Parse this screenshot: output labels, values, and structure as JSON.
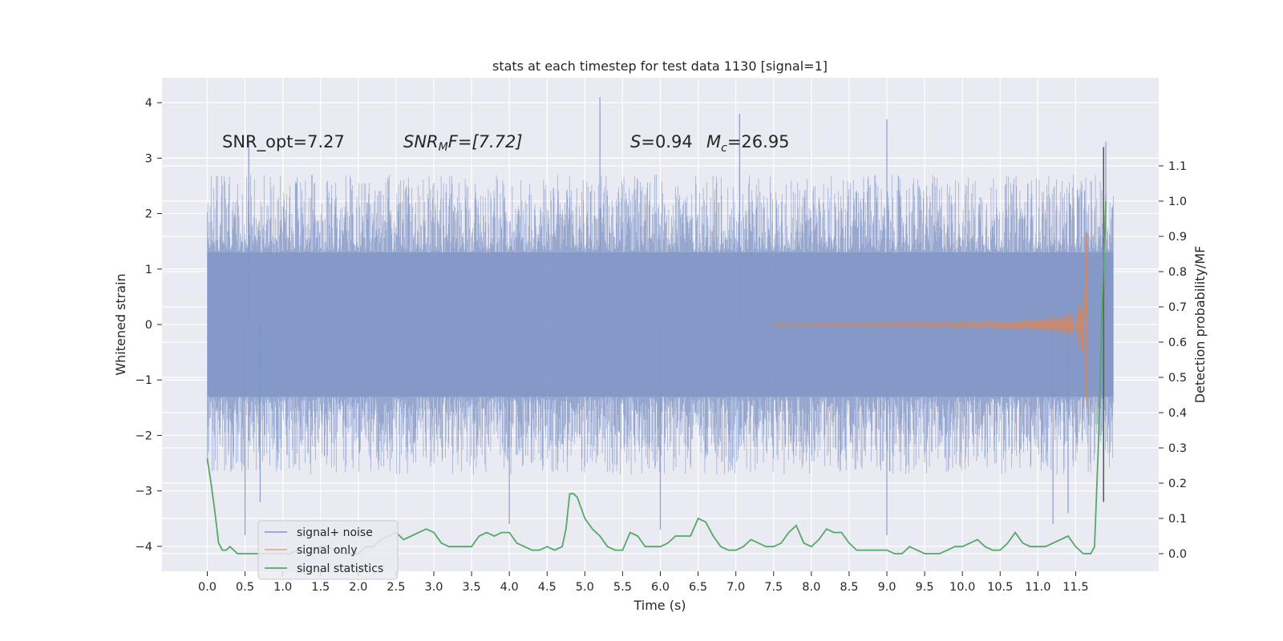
{
  "chart_data": {
    "type": "line",
    "title": "stats at each timestep for test data 1130 [signal=1]",
    "xlabel": "Time (s)",
    "ylabel_left": "Whitened strain",
    "ylabel_right": "Detection probability/MF",
    "xlim": [
      -0.6,
      12.6
    ],
    "ylim_left": [
      -4.45,
      4.45
    ],
    "ylim_right": [
      -0.05,
      1.35
    ],
    "x_ticks": [
      "0.0",
      "0.5",
      "1.0",
      "1.5",
      "2.0",
      "2.5",
      "3.0",
      "3.5",
      "4.0",
      "4.5",
      "5.0",
      "5.5",
      "6.0",
      "6.5",
      "7.0",
      "7.5",
      "8.0",
      "8.5",
      "9.0",
      "9.5",
      "10.0",
      "10.5",
      "11.0",
      "11.5"
    ],
    "y_ticks_left": [
      "4",
      "3",
      "2",
      "1",
      "0",
      "−1",
      "−2",
      "−3",
      "−4"
    ],
    "y_ticks_right": [
      "1.1",
      "1.0",
      "0.9",
      "0.8",
      "0.7",
      "0.6",
      "0.5",
      "0.4",
      "0.3",
      "0.2",
      "0.1",
      "0.0"
    ],
    "grid": true,
    "legend_position": "lower-left",
    "annotations": {
      "snr_opt": "SNR_opt=7.27",
      "snr_mf_main": "SNR",
      "snr_mf_sub": "M",
      "snr_mf_rest": "F=[7.72]",
      "s_var": "S",
      "s_rest": "=0.94",
      "mc_var": "M",
      "mc_sub": "c",
      "mc_rest": "=26.95"
    },
    "noise_envelope": {
      "x_range": [
        0.0,
        12.0
      ],
      "dense_band": [
        -1.3,
        1.3
      ],
      "typical_peaks": [
        -2.0,
        2.0
      ],
      "outlier_peaks": [
        {
          "x": 5.2,
          "y": 4.1
        },
        {
          "x": 0.55,
          "y": 3.3
        },
        {
          "x": 7.05,
          "y": 3.8
        },
        {
          "x": 9.0,
          "y": 3.7
        },
        {
          "x": 11.9,
          "y": 3.3
        },
        {
          "x": 0.5,
          "y": -3.8
        },
        {
          "x": 9.0,
          "y": -3.8
        },
        {
          "x": 6.0,
          "y": -3.7
        },
        {
          "x": 4.0,
          "y": -3.6
        },
        {
          "x": 11.2,
          "y": -3.6
        },
        {
          "x": 0.7,
          "y": -3.2
        },
        {
          "x": 11.4,
          "y": -3.4
        }
      ]
    },
    "signal_only": {
      "chirp_start": 7.5,
      "merger_time": 11.65,
      "final_positive_peak": 1.65,
      "final_negative_peak": -1.5
    },
    "series": [
      {
        "name": "signal statistics",
        "axis": "right",
        "x": [
          0.0,
          0.05,
          0.1,
          0.15,
          0.2,
          0.25,
          0.3,
          0.4,
          0.5,
          0.6,
          0.7,
          0.8,
          0.9,
          1.0,
          1.1,
          1.2,
          1.3,
          1.4,
          1.5,
          1.6,
          1.7,
          1.8,
          1.9,
          2.0,
          2.1,
          2.2,
          2.3,
          2.4,
          2.5,
          2.6,
          2.7,
          2.8,
          2.9,
          3.0,
          3.1,
          3.2,
          3.3,
          3.4,
          3.5,
          3.6,
          3.7,
          3.8,
          3.9,
          4.0,
          4.1,
          4.2,
          4.3,
          4.4,
          4.5,
          4.6,
          4.7,
          4.75,
          4.8,
          4.85,
          4.9,
          5.0,
          5.1,
          5.2,
          5.3,
          5.4,
          5.5,
          5.6,
          5.7,
          5.8,
          5.9,
          6.0,
          6.1,
          6.2,
          6.3,
          6.4,
          6.5,
          6.6,
          6.7,
          6.8,
          6.9,
          7.0,
          7.1,
          7.2,
          7.3,
          7.4,
          7.5,
          7.6,
          7.7,
          7.8,
          7.9,
          8.0,
          8.1,
          8.2,
          8.3,
          8.4,
          8.5,
          8.6,
          8.7,
          8.8,
          8.9,
          9.0,
          9.1,
          9.2,
          9.3,
          9.4,
          9.5,
          9.6,
          9.7,
          9.8,
          9.9,
          10.0,
          10.1,
          10.2,
          10.3,
          10.4,
          10.5,
          10.6,
          10.7,
          10.8,
          10.9,
          11.0,
          11.1,
          11.2,
          11.3,
          11.4,
          11.5,
          11.6,
          11.7,
          11.75,
          11.8,
          11.85,
          11.9
        ],
        "values": [
          0.27,
          0.2,
          0.12,
          0.03,
          0.01,
          0.01,
          0.02,
          0.0,
          0.0,
          0.0,
          0.0,
          0.0,
          0.0,
          0.0,
          0.0,
          0.01,
          0.0,
          0.01,
          0.02,
          0.02,
          0.01,
          0.0,
          0.0,
          0.0,
          0.02,
          0.02,
          0.04,
          0.05,
          0.06,
          0.04,
          0.05,
          0.06,
          0.07,
          0.06,
          0.03,
          0.02,
          0.02,
          0.02,
          0.02,
          0.05,
          0.06,
          0.05,
          0.06,
          0.06,
          0.03,
          0.02,
          0.01,
          0.01,
          0.02,
          0.01,
          0.02,
          0.07,
          0.17,
          0.17,
          0.16,
          0.1,
          0.07,
          0.05,
          0.02,
          0.01,
          0.01,
          0.06,
          0.05,
          0.02,
          0.02,
          0.02,
          0.03,
          0.05,
          0.05,
          0.05,
          0.1,
          0.09,
          0.05,
          0.02,
          0.01,
          0.01,
          0.02,
          0.04,
          0.03,
          0.02,
          0.02,
          0.03,
          0.06,
          0.08,
          0.03,
          0.02,
          0.04,
          0.07,
          0.06,
          0.06,
          0.03,
          0.01,
          0.01,
          0.01,
          0.01,
          0.01,
          0.0,
          0.0,
          0.02,
          0.01,
          0.0,
          0.0,
          0.0,
          0.01,
          0.02,
          0.02,
          0.03,
          0.04,
          0.02,
          0.01,
          0.01,
          0.03,
          0.06,
          0.03,
          0.02,
          0.02,
          0.02,
          0.03,
          0.04,
          0.05,
          0.02,
          0.0,
          0.0,
          0.02,
          0.3,
          0.7,
          1.0
        ]
      }
    ],
    "legend": [
      "signal+ noise",
      "signal only",
      "signal statistics"
    ],
    "colors": {
      "axes_bg": "#eaeaf2",
      "grid": "#ffffff",
      "noise": "#7f95c6",
      "signal": "#dd8452",
      "stats": "#55a868",
      "marker_line": "#5c5c5c",
      "text": "#262626"
    }
  }
}
